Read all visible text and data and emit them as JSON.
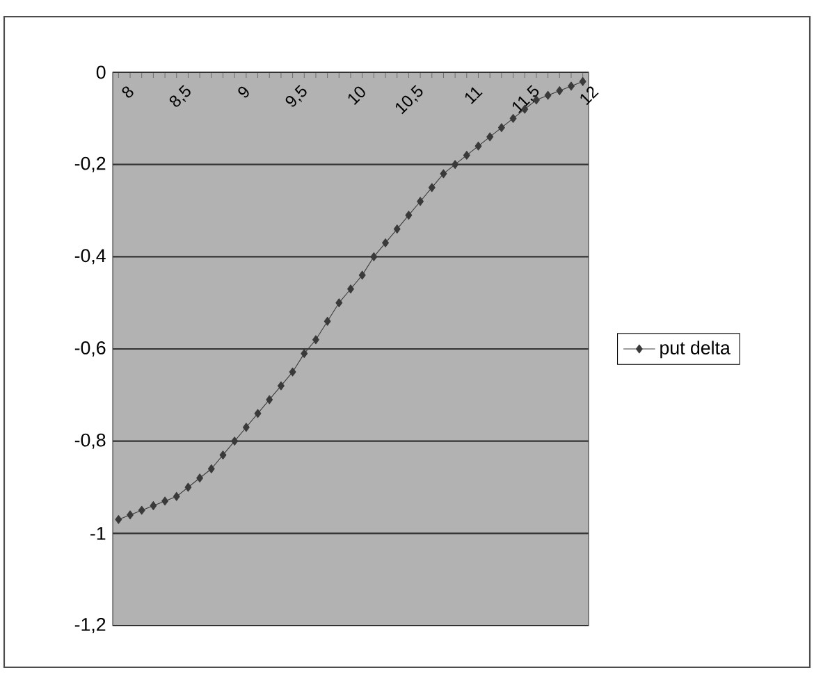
{
  "chart_data": {
    "type": "line",
    "categories": [
      "8",
      null,
      null,
      null,
      null,
      "8,5",
      null,
      null,
      null,
      null,
      "9",
      null,
      null,
      null,
      null,
      "9,5",
      null,
      null,
      null,
      null,
      "10",
      null,
      null,
      null,
      null,
      "10,5",
      null,
      null,
      null,
      null,
      "11",
      null,
      null,
      null,
      null,
      "11,5",
      null,
      null,
      null,
      null,
      "12"
    ],
    "series": [
      {
        "name": "put delta",
        "color": "#3a3a3a",
        "values": [
          -0.97,
          -0.96,
          -0.95,
          -0.94,
          -0.93,
          -0.92,
          -0.9,
          -0.88,
          -0.86,
          -0.83,
          -0.8,
          -0.77,
          -0.74,
          -0.71,
          -0.68,
          -0.65,
          -0.61,
          -0.58,
          -0.54,
          -0.5,
          -0.47,
          -0.44,
          -0.4,
          -0.37,
          -0.34,
          -0.31,
          -0.28,
          -0.25,
          -0.22,
          -0.2,
          -0.18,
          -0.16,
          -0.14,
          -0.12,
          -0.1,
          -0.08,
          -0.06,
          -0.05,
          -0.04,
          -0.03,
          -0.02
        ]
      }
    ],
    "ylim": [
      -1.2,
      0
    ],
    "yticks": [
      {
        "value": -1.2,
        "label": "-1,2"
      },
      {
        "value": -1,
        "label": "-1"
      },
      {
        "value": -0.8,
        "label": "-0,8"
      },
      {
        "value": -0.6,
        "label": "-0,6"
      },
      {
        "value": -0.4,
        "label": "-0,4"
      },
      {
        "value": -0.2,
        "label": "-0,2"
      },
      {
        "value": 0,
        "label": "0"
      }
    ],
    "grid": "y",
    "legend": "right",
    "marker": "diamond",
    "line_style": "solid"
  }
}
